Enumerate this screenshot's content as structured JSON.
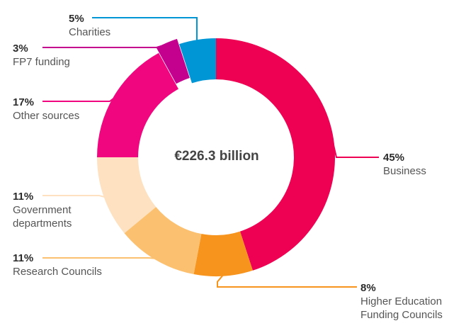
{
  "chart_data": {
    "type": "pie",
    "total_label": "€226.3 billion",
    "slices": [
      {
        "label": "Business",
        "value": 45,
        "pct_label": "45%",
        "color": "#ee0053"
      },
      {
        "label": "Higher Education\nFunding Councils",
        "value": 8,
        "pct_label": "8%",
        "color": "#f7941d"
      },
      {
        "label": "Research Councils",
        "value": 11,
        "pct_label": "11%",
        "color": "#fcc170"
      },
      {
        "label": "Government\ndepartments",
        "value": 11,
        "pct_label": "11%",
        "color": "#fde1c0"
      },
      {
        "label": "Other sources",
        "value": 17,
        "pct_label": "17%",
        "color": "#f0077f"
      },
      {
        "label": "FP7 funding",
        "value": 3,
        "pct_label": "3%",
        "color": "#c4008f"
      },
      {
        "label": "Charities",
        "value": 5,
        "pct_label": "5%",
        "color": "#0096d6"
      }
    ]
  }
}
